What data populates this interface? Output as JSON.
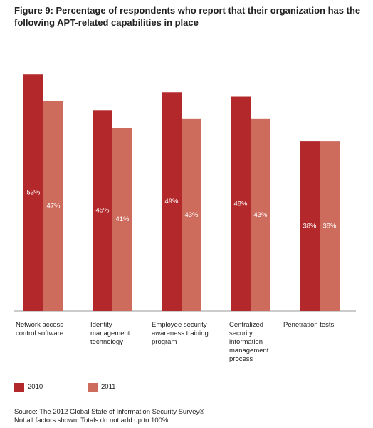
{
  "chart_data": {
    "type": "bar",
    "title": "Figure 9: Percentage of respondents who report that their organization has the following APT-related capabilities in place",
    "categories": [
      "Network access\ncontrol software",
      "Identity\nmanagement\ntechnology",
      "Employee security\nawareness training\nprogram",
      "Centralized\nsecurity\ninformation\nmanagement\nprocess",
      "Penetration tests"
    ],
    "series": [
      {
        "name": "2010",
        "color": "#b3282a",
        "values": [
          53,
          45,
          49,
          48,
          38
        ],
        "value_labels": [
          "53%",
          "45%",
          "49%",
          "48%",
          "38%"
        ]
      },
      {
        "name": "2011",
        "color": "#cd6b5c",
        "values": [
          47,
          41,
          43,
          43,
          38
        ],
        "value_labels": [
          "47%",
          "41%",
          "43%",
          "43%",
          "38%"
        ]
      }
    ],
    "notes": [
      "Source: The 2012 Global State of Information Security Survey®",
      "Not all factors shown. Totals do not add up to 100%."
    ]
  }
}
